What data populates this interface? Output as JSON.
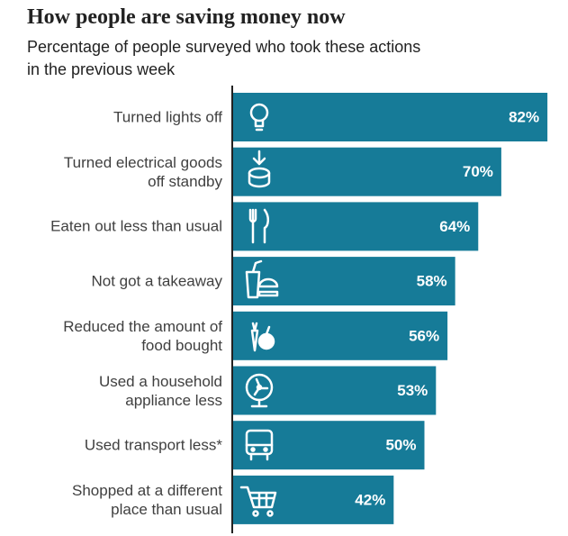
{
  "chart_data": {
    "type": "bar",
    "orientation": "horizontal",
    "title": "How people are saving money now",
    "subtitle": "Percentage of people surveyed who took these actions\nin the previous week",
    "categories": [
      "Turned lights off",
      "Turned electrical goods\noff standby",
      "Eaten out less than usual",
      "Not got a takeaway",
      "Reduced the amount of\nfood bought",
      "Used a household\nappliance less",
      "Used transport less*",
      "Shopped at a different\nplace than usual"
    ],
    "values": [
      82,
      70,
      64,
      58,
      56,
      53,
      50,
      42
    ],
    "value_labels": [
      "82%",
      "70%",
      "64%",
      "58%",
      "56%",
      "53%",
      "50%",
      "42%"
    ],
    "color": "#167b98",
    "xlim": [
      0,
      100
    ]
  }
}
